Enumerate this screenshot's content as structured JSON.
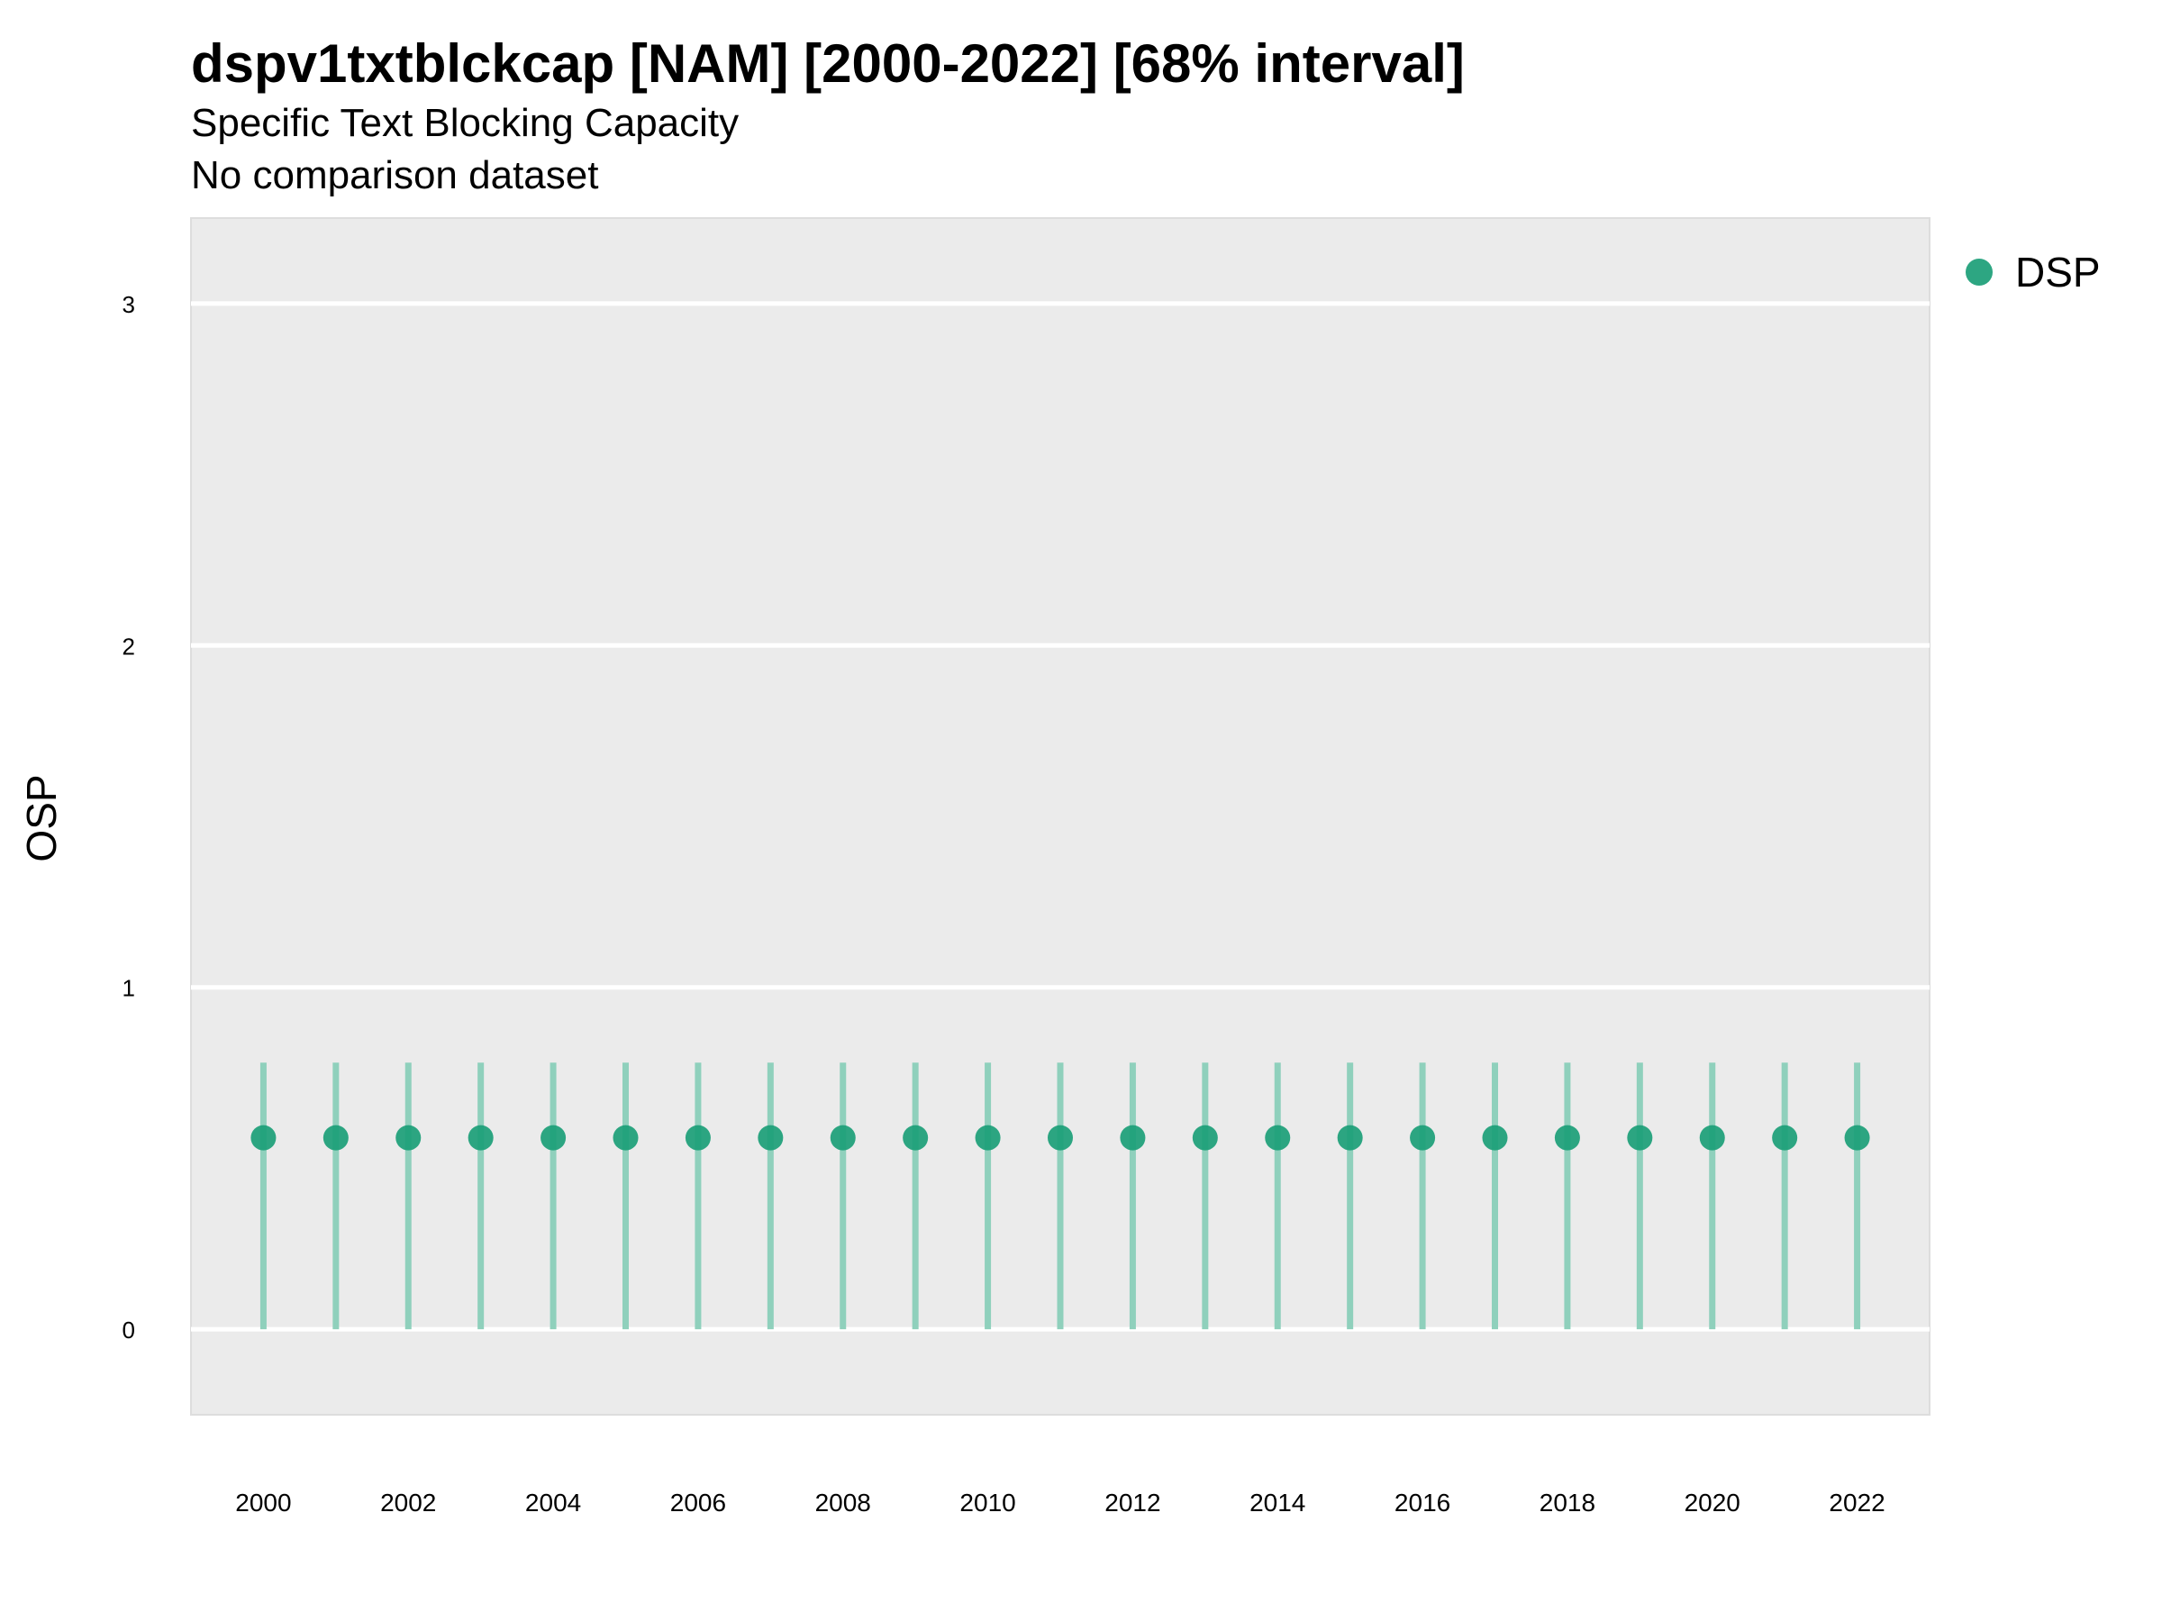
{
  "chart_data": {
    "type": "scatter",
    "title": "dspv1txtblckcap [NAM] [2000-2022] [68% interval]",
    "subtitle": "Specific Text Blocking Capacity",
    "caption": "No comparison dataset",
    "xlabel": "",
    "ylabel": "OSP",
    "xlim": [
      1999,
      2023
    ],
    "ylim": [
      -0.25,
      3.25
    ],
    "x_ticks": [
      2000,
      2002,
      2004,
      2006,
      2008,
      2010,
      2012,
      2014,
      2016,
      2018,
      2020,
      2022
    ],
    "y_ticks": [
      0,
      1,
      2,
      3
    ],
    "grid": true,
    "legend_position": "right",
    "series": [
      {
        "name": "DSP",
        "color": "#1b9e77",
        "x": [
          2000,
          2001,
          2002,
          2003,
          2004,
          2005,
          2006,
          2007,
          2008,
          2009,
          2010,
          2011,
          2012,
          2013,
          2014,
          2015,
          2016,
          2017,
          2018,
          2019,
          2020,
          2021,
          2022
        ],
        "y": [
          0.56,
          0.56,
          0.56,
          0.56,
          0.56,
          0.56,
          0.56,
          0.56,
          0.56,
          0.56,
          0.56,
          0.56,
          0.56,
          0.56,
          0.56,
          0.56,
          0.56,
          0.56,
          0.56,
          0.56,
          0.56,
          0.56,
          0.56
        ],
        "lower": [
          0.0,
          0.0,
          0.0,
          0.0,
          0.0,
          0.0,
          0.0,
          0.0,
          0.0,
          0.0,
          0.0,
          0.0,
          0.0,
          0.0,
          0.0,
          0.0,
          0.0,
          0.0,
          0.0,
          0.0,
          0.0,
          0.0,
          0.0
        ],
        "upper": [
          0.78,
          0.78,
          0.78,
          0.78,
          0.78,
          0.78,
          0.78,
          0.78,
          0.78,
          0.78,
          0.78,
          0.78,
          0.78,
          0.78,
          0.78,
          0.78,
          0.78,
          0.78,
          0.78,
          0.78,
          0.78,
          0.78,
          0.78
        ]
      }
    ]
  },
  "colors": {
    "panel_background": "#ebebeb",
    "gridline": "#ffffff",
    "point": "#1b9e77",
    "errorbar": "#8fd0bc"
  }
}
